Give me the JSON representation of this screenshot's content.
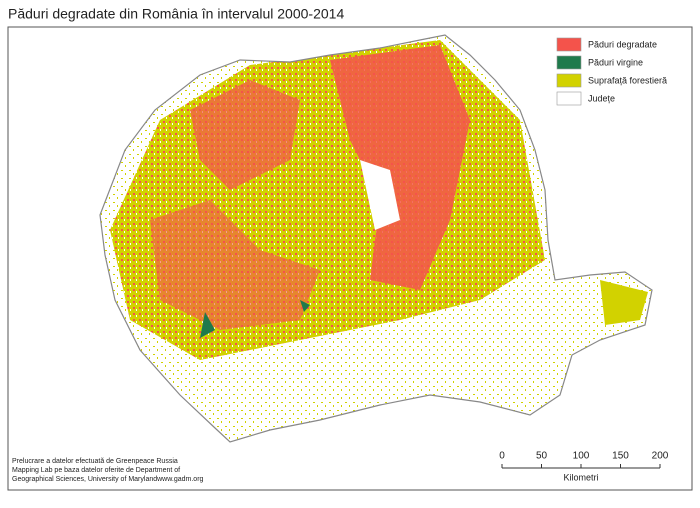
{
  "title": "Păduri degradate din România în intervalul 2000-2014",
  "legend": [
    {
      "label": "Păduri degradate",
      "color": "#f4534b"
    },
    {
      "label": "Păduri virgine",
      "color": "#1f7a4c"
    },
    {
      "label": "Suprafață forestieră",
      "color": "#d2d200"
    },
    {
      "label": "Județe",
      "color": "#ffffff"
    }
  ],
  "credits": [
    "Prelucrare a datelor efectuată de Greenpeace Russia",
    "Mapping Lab pe baza datelor oferite de Department of",
    "Geographical Sciences, University of Marylandwww.gadm.org"
  ],
  "scale_bar": {
    "ticks": [
      0,
      50,
      100,
      150,
      200
    ],
    "unit": "Kilometri"
  }
}
